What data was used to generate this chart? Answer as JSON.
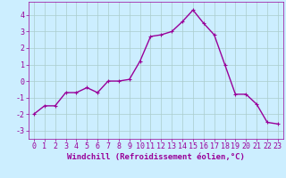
{
  "x": [
    0,
    1,
    2,
    3,
    4,
    5,
    6,
    7,
    8,
    9,
    10,
    11,
    12,
    13,
    14,
    15,
    16,
    17,
    18,
    19,
    20,
    21,
    22,
    23
  ],
  "y": [
    -2.0,
    -1.5,
    -1.5,
    -0.7,
    -0.7,
    -0.4,
    -0.7,
    0.0,
    0.0,
    0.1,
    1.2,
    2.7,
    2.8,
    3.0,
    3.6,
    4.3,
    3.5,
    2.8,
    1.0,
    -0.8,
    -0.8,
    -1.4,
    -2.5,
    -2.6
  ],
  "line_color": "#990099",
  "marker": "+",
  "marker_size": 3,
  "linewidth": 1.0,
  "xlabel": "Windchill (Refroidissement éolien,°C)",
  "xlim": [
    -0.5,
    23.5
  ],
  "ylim": [
    -3.5,
    4.8
  ],
  "yticks": [
    -3,
    -2,
    -1,
    0,
    1,
    2,
    3,
    4
  ],
  "xticks": [
    0,
    1,
    2,
    3,
    4,
    5,
    6,
    7,
    8,
    9,
    10,
    11,
    12,
    13,
    14,
    15,
    16,
    17,
    18,
    19,
    20,
    21,
    22,
    23
  ],
  "background_color": "#cceeff",
  "grid_color": "#aacccc",
  "xlabel_fontsize": 6.5,
  "tick_fontsize": 6
}
